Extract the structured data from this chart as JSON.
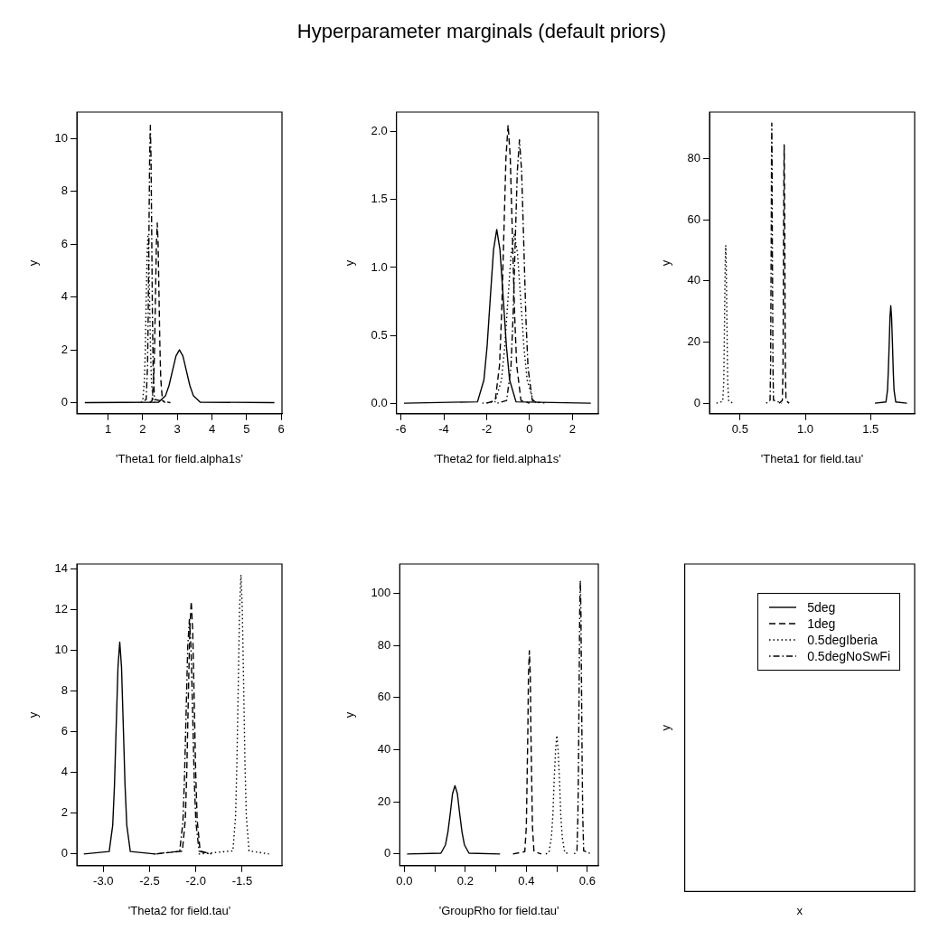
{
  "chart_data": [
    {
      "type": "line",
      "xlabel": "'Theta1 for field.alpha1s'",
      "ylabel": "y",
      "xlim": [
        0.1,
        6.02
      ],
      "ylim": [
        -0.42,
        11.0
      ],
      "xticks": [
        1,
        2,
        3,
        4,
        5,
        6
      ],
      "yticks": [
        0,
        2,
        4,
        6,
        8,
        10
      ],
      "grid": false,
      "marker": "none",
      "series": [
        {
          "color": "#000000",
          "line_style": "solid",
          "x": [
            0.33,
            2.46,
            2.66,
            2.76,
            2.86,
            2.96,
            3.06,
            3.16,
            3.26,
            3.36,
            3.46,
            3.66,
            5.8
          ],
          "values": [
            0,
            0.02,
            0.27,
            0.65,
            1.21,
            1.77,
            2.0,
            1.77,
            1.21,
            0.65,
            0.27,
            0.02,
            0
          ]
        },
        {
          "color": "#000000",
          "line_style": "dashed",
          "x": [
            2.2,
            2.27,
            2.32,
            2.345,
            2.37,
            2.395,
            2.42,
            2.445,
            2.47,
            2.495,
            2.52,
            2.57,
            2.65
          ],
          "values": [
            0,
            0.08,
            0.92,
            2.21,
            4.12,
            6.0,
            6.8,
            6.0,
            4.12,
            2.21,
            0.92,
            0.08,
            0
          ]
        },
        {
          "color": "#000000",
          "line_style": "dotted",
          "x": [
            1.95,
            2.0,
            2.05,
            2.075,
            2.1,
            2.125,
            2.15,
            2.175,
            2.2,
            2.225,
            2.25,
            2.3,
            2.35
          ],
          "values": [
            0,
            0.07,
            0.85,
            2.05,
            3.82,
            5.56,
            6.3,
            5.56,
            3.82,
            2.05,
            0.85,
            0.07,
            0
          ]
        },
        {
          "color": "#000000",
          "line_style": "dashdot",
          "x": [
            1.95,
            2.1,
            2.14,
            2.16,
            2.18,
            2.2,
            2.22,
            2.24,
            2.26,
            2.28,
            2.3,
            2.34,
            2.8
          ],
          "values": [
            0,
            0.12,
            1.42,
            3.41,
            6.37,
            9.27,
            10.5,
            9.27,
            6.37,
            3.41,
            1.42,
            0.12,
            0
          ]
        }
      ]
    },
    {
      "type": "line",
      "title": "Hyperparameter marginals (default priors)",
      "xlabel": "'Theta2 for field.alpha1s'",
      "ylabel": "y",
      "xlim": [
        -6.21,
        3.21
      ],
      "ylim": [
        -0.078,
        2.145
      ],
      "xticks": [
        -6,
        -4,
        -2,
        0,
        2
      ],
      "yticks": [
        {
          "value": 0,
          "label": "0.0"
        },
        0.5,
        {
          "value": 1,
          "label": "1.0"
        },
        1.5,
        {
          "value": 2,
          "label": "2.0"
        }
      ],
      "grid": false,
      "marker": "none",
      "series": [
        {
          "color": "#000000",
          "line_style": "solid",
          "x": [
            -5.86,
            -2.43,
            -2.13,
            -1.98,
            -1.83,
            -1.68,
            -1.53,
            -1.38,
            -1.23,
            -1.08,
            -0.93,
            -0.63,
            2.86
          ],
          "values": [
            0,
            0.01,
            0.17,
            0.42,
            0.78,
            1.13,
            1.28,
            1.13,
            0.78,
            0.42,
            0.17,
            0.01,
            0
          ]
        },
        {
          "color": "#000000",
          "line_style": "dashed",
          "x": [
            -2.0,
            -1.6,
            -1.4,
            -1.3,
            -1.2,
            -1.1,
            -1.0,
            -0.9,
            -0.8,
            -0.7,
            -0.6,
            -0.4,
            0.0
          ],
          "values": [
            0,
            0.02,
            0.28,
            0.67,
            1.24,
            1.81,
            2.05,
            1.81,
            1.24,
            0.67,
            0.28,
            0.02,
            0
          ]
        },
        {
          "color": "#000000",
          "line_style": "dotted",
          "x": [
            -2.2,
            -1.61,
            -1.31,
            -1.16,
            -1.01,
            -0.86,
            -0.71,
            -0.56,
            -0.41,
            -0.26,
            -0.11,
            0.19,
            0.8
          ],
          "values": [
            0,
            0.01,
            0.17,
            0.41,
            0.76,
            1.1,
            1.25,
            1.1,
            0.76,
            0.41,
            0.17,
            0.01,
            0
          ]
        },
        {
          "color": "#000000",
          "line_style": "dashdot",
          "x": [
            -1.5,
            -1.07,
            -0.87,
            -0.77,
            -0.67,
            -0.57,
            -0.47,
            -0.37,
            -0.27,
            -0.17,
            -0.07,
            0.13,
            0.5
          ],
          "values": [
            0,
            0.02,
            0.26,
            0.63,
            1.18,
            1.71,
            1.94,
            1.71,
            1.18,
            0.63,
            0.26,
            0.02,
            0
          ]
        }
      ]
    },
    {
      "type": "line",
      "xlabel": "'Theta1 for field.tau'",
      "ylabel": "y",
      "xlim": [
        0.266,
        1.838
      ],
      "ylim": [
        -3.46,
        95.3
      ],
      "xticks": [
        0.5,
        {
          "value": 1,
          "label": "1.0"
        },
        1.5
      ],
      "yticks": [
        0,
        20,
        40,
        60,
        80
      ],
      "grid": false,
      "marker": "none",
      "series": [
        {
          "color": "#000000",
          "line_style": "solid",
          "x": [
            1.533,
            1.618,
            1.63,
            1.636,
            1.643,
            1.649,
            1.655,
            1.661,
            1.668,
            1.674,
            1.68,
            1.693,
            1.779
          ],
          "values": [
            0,
            0.4,
            4.3,
            10.4,
            19.3,
            28.2,
            31.9,
            28.2,
            19.3,
            10.4,
            4.3,
            0.4,
            0
          ]
        },
        {
          "color": "#000000",
          "line_style": "dashed",
          "x": [
            0.8,
            0.824,
            0.829,
            0.831,
            0.833,
            0.836,
            0.838,
            0.84,
            0.843,
            0.845,
            0.847,
            0.852,
            0.876
          ],
          "values": [
            0,
            0.9,
            11.4,
            27.5,
            51.3,
            74.7,
            84.6,
            74.7,
            51.3,
            27.5,
            11.4,
            0.9,
            0
          ]
        },
        {
          "color": "#000000",
          "line_style": "dotted",
          "x": [
            0.319,
            0.367,
            0.375,
            0.378,
            0.382,
            0.386,
            0.39,
            0.394,
            0.398,
            0.402,
            0.405,
            0.413,
            0.45
          ],
          "values": [
            0,
            0.6,
            7.0,
            16.8,
            31.4,
            45.6,
            51.7,
            45.6,
            31.4,
            16.8,
            7.0,
            0.6,
            0
          ]
        },
        {
          "color": "#000000",
          "line_style": "dashdot",
          "x": [
            0.7,
            0.73,
            0.734,
            0.736,
            0.739,
            0.741,
            0.743,
            0.745,
            0.747,
            0.75,
            0.752,
            0.756,
            0.82
          ],
          "values": [
            0,
            1.0,
            12.4,
            29.8,
            55.6,
            80.9,
            91.7,
            80.9,
            55.6,
            29.8,
            12.4,
            1.0,
            0
          ]
        }
      ]
    },
    {
      "type": "line",
      "xlabel": "'Theta2 for field.tau'",
      "ylabel": "y",
      "xlim": [
        -3.285,
        -1.07
      ],
      "ylim": [
        -0.575,
        14.23
      ],
      "xticks": [
        {
          "value": -3,
          "label": "-3.0"
        },
        -2.5,
        {
          "value": -2,
          "label": "-2.0"
        },
        -1.5
      ],
      "yticks": [
        0,
        2,
        4,
        6,
        8,
        10,
        12,
        14
      ],
      "grid": false,
      "marker": "none",
      "series": [
        {
          "color": "#000000",
          "line_style": "solid",
          "x": [
            -3.21,
            -2.936,
            -2.898,
            -2.879,
            -2.86,
            -2.841,
            -2.822,
            -2.803,
            -2.784,
            -2.765,
            -2.746,
            -2.708,
            -2.44
          ],
          "values": [
            0,
            0.12,
            1.41,
            3.38,
            6.31,
            9.18,
            10.4,
            9.18,
            6.31,
            3.38,
            1.41,
            0.12,
            0
          ]
        },
        {
          "color": "#000000",
          "line_style": "dashed",
          "x": [
            -2.43,
            -2.146,
            -2.114,
            -2.098,
            -2.082,
            -2.066,
            -2.05,
            -2.034,
            -2.018,
            -2.002,
            -1.986,
            -1.954,
            -1.83
          ],
          "values": [
            0,
            0.14,
            1.68,
            4.03,
            7.52,
            10.94,
            12.4,
            10.94,
            7.52,
            4.03,
            1.68,
            0.14,
            0
          ]
        },
        {
          "color": "#000000",
          "line_style": "dotted",
          "x": [
            -1.97,
            -1.6,
            -1.571,
            -1.557,
            -1.542,
            -1.528,
            -1.513,
            -1.499,
            -1.484,
            -1.47,
            -1.455,
            -1.426,
            -1.21
          ],
          "values": [
            0,
            0.15,
            1.85,
            4.45,
            8.31,
            12.09,
            13.7,
            12.09,
            8.31,
            4.45,
            1.85,
            0.15,
            0
          ]
        },
        {
          "color": "#000000",
          "line_style": "dashdot",
          "x": [
            -2.45,
            -2.175,
            -2.14,
            -2.123,
            -2.105,
            -2.088,
            -2.07,
            -2.053,
            -2.035,
            -2.018,
            -2.0,
            -1.965,
            -1.85
          ],
          "values": [
            0,
            0.13,
            1.56,
            3.73,
            6.97,
            10.15,
            11.5,
            10.15,
            6.97,
            3.73,
            1.56,
            0.13,
            0
          ]
        }
      ]
    },
    {
      "type": "line",
      "xlabel": "'GroupRho for field.tau'",
      "ylabel": "y",
      "xlim": [
        -0.015,
        0.636
      ],
      "ylim": [
        -4.5,
        111.3
      ],
      "xticks": [
        {
          "value": 0,
          "label": "0.0"
        },
        {
          "value": 0.1,
          "label": null
        },
        0.2,
        {
          "value": 0.3,
          "label": null
        },
        0.4,
        {
          "value": 0.5,
          "label": null
        },
        0.6
      ],
      "yticks": [
        0,
        20,
        40,
        60,
        80,
        100
      ],
      "grid": false,
      "marker": "none",
      "series": [
        {
          "color": "#000000",
          "line_style": "solid",
          "x": [
            0.009,
            0.12,
            0.135,
            0.143,
            0.151,
            0.158,
            0.166,
            0.174,
            0.181,
            0.189,
            0.197,
            0.212,
            0.314
          ],
          "values": [
            0,
            0.3,
            3.5,
            8.5,
            15.9,
            23.1,
            26.2,
            23.1,
            15.9,
            8.5,
            3.5,
            0.3,
            0
          ]
        },
        {
          "color": "#000000",
          "line_style": "dashed",
          "x": [
            0.356,
            0.395,
            0.4,
            0.402,
            0.405,
            0.407,
            0.41,
            0.413,
            0.415,
            0.418,
            0.42,
            0.425,
            0.449
          ],
          "values": [
            0,
            0.9,
            10.6,
            25.3,
            47.3,
            68.8,
            78,
            68.8,
            47.3,
            25.3,
            10.6,
            0.9,
            0
          ]
        },
        {
          "color": "#000000",
          "line_style": "dotted",
          "x": [
            0.464,
            0.474,
            0.482,
            0.487,
            0.491,
            0.496,
            0.5,
            0.504,
            0.509,
            0.513,
            0.518,
            0.526,
            0.543
          ],
          "values": [
            0,
            0.5,
            6.2,
            14.8,
            27.6,
            40.2,
            45.5,
            40.2,
            27.6,
            14.8,
            6.2,
            0.5,
            0
          ]
        },
        {
          "color": "#000000",
          "line_style": "dashdot",
          "x": [
            0.557,
            0.566,
            0.569,
            0.571,
            0.573,
            0.575,
            0.577,
            0.579,
            0.581,
            0.583,
            0.585,
            0.588,
            0.613
          ],
          "values": [
            0,
            1.2,
            14.2,
            34.1,
            63.7,
            92.7,
            105,
            92.7,
            63.7,
            34.1,
            14.2,
            1.2,
            0
          ]
        }
      ]
    },
    {
      "type": "other",
      "xlabel": "x",
      "ylabel": "y",
      "legend": "top right",
      "series": [
        {
          "name": "5deg",
          "color": "#000000",
          "line_style": "solid"
        },
        {
          "name": "1deg",
          "color": "#000000",
          "line_style": "dashed"
        },
        {
          "name": "0.5degIberia",
          "color": "#000000",
          "line_style": "dotted"
        },
        {
          "name": "0.5degNoSwFi",
          "color": "#000000",
          "line_style": "dashdot"
        }
      ]
    }
  ]
}
